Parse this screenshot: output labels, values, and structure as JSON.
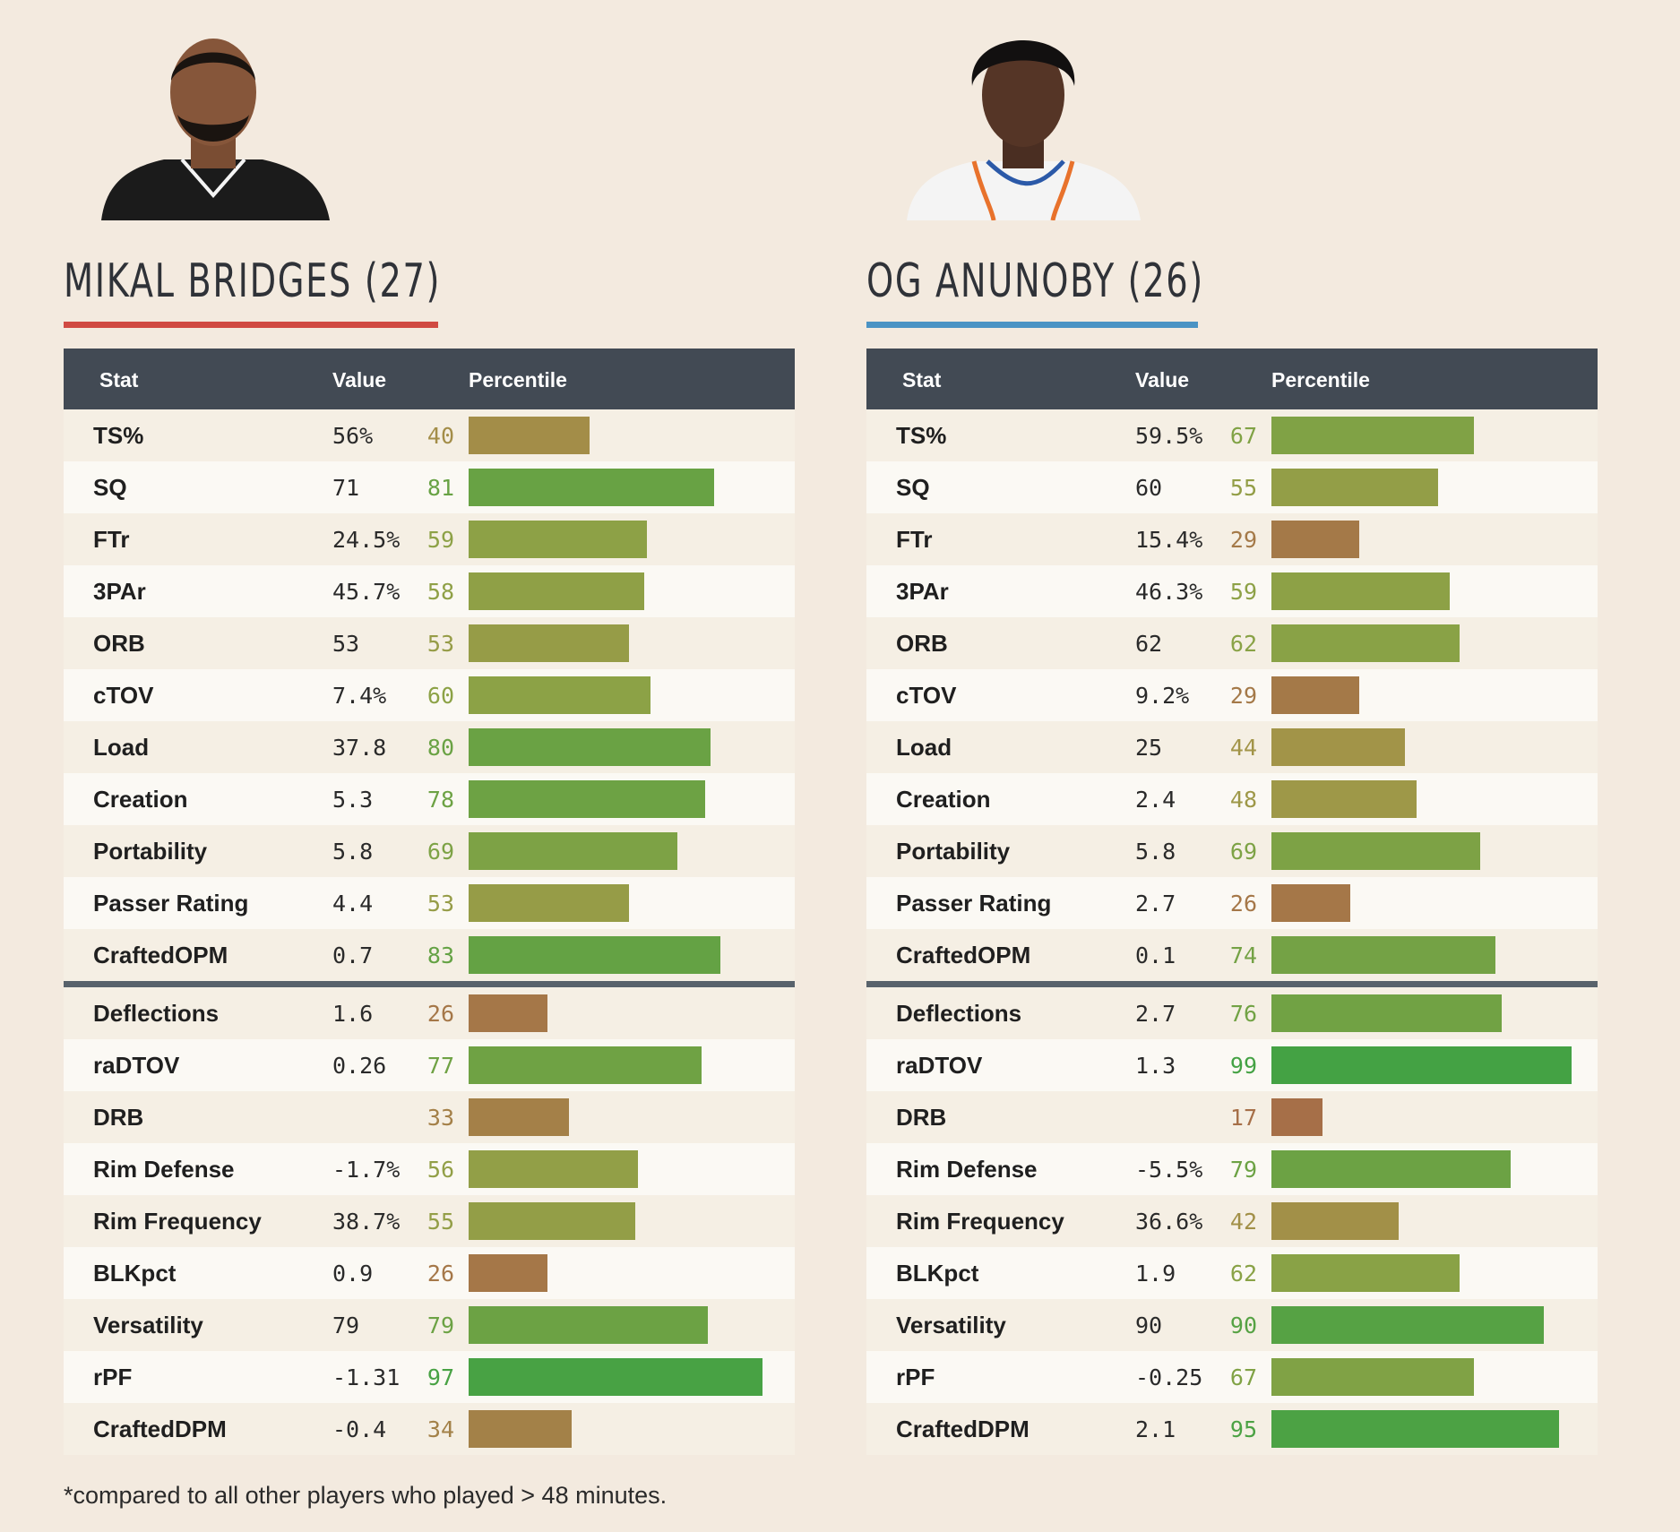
{
  "players": [
    {
      "name": "MIKAL BRIDGES (27)",
      "underline_color": "#d04a42",
      "jersey_color": "#1b1b1b",
      "headers": {
        "stat": "Stat",
        "value": "Value",
        "percentile": "Percentile"
      },
      "offense": [
        {
          "stat": "TS%",
          "value": "56%",
          "pct": 40
        },
        {
          "stat": "SQ",
          "value": "71",
          "pct": 81
        },
        {
          "stat": "FTr",
          "value": "24.5%",
          "pct": 59
        },
        {
          "stat": "3PAr",
          "value": "45.7%",
          "pct": 58
        },
        {
          "stat": "ORB",
          "value": "53",
          "pct": 53
        },
        {
          "stat": "cTOV",
          "value": "7.4%",
          "pct": 60
        },
        {
          "stat": "Load",
          "value": "37.8",
          "pct": 80
        },
        {
          "stat": "Creation",
          "value": "5.3",
          "pct": 78
        },
        {
          "stat": "Portability",
          "value": "5.8",
          "pct": 69
        },
        {
          "stat": "Passer Rating",
          "value": "4.4",
          "pct": 53
        },
        {
          "stat": "CraftedOPM",
          "value": "0.7",
          "pct": 83
        }
      ],
      "defense": [
        {
          "stat": "Deflections",
          "value": "1.6",
          "pct": 26
        },
        {
          "stat": "raDTOV",
          "value": "0.26",
          "pct": 77
        },
        {
          "stat": "DRB",
          "value": "",
          "pct": 33
        },
        {
          "stat": "Rim Defense",
          "value": "-1.7%",
          "pct": 56
        },
        {
          "stat": "Rim Frequency",
          "value": "38.7%",
          "pct": 55
        },
        {
          "stat": "BLKpct",
          "value": "0.9",
          "pct": 26
        },
        {
          "stat": "Versatility",
          "value": "79",
          "pct": 79
        },
        {
          "stat": "rPF",
          "value": "-1.31",
          "pct": 97
        },
        {
          "stat": "CraftedDPM",
          "value": "-0.4",
          "pct": 34
        }
      ]
    },
    {
      "name": "OG ANUNOBY (26)",
      "underline_color": "#4a93c4",
      "jersey_color": "#f4f4f4",
      "headers": {
        "stat": "Stat",
        "value": "Value",
        "percentile": "Percentile"
      },
      "offense": [
        {
          "stat": "TS%",
          "value": "59.5%",
          "pct": 67
        },
        {
          "stat": "SQ",
          "value": "60",
          "pct": 55
        },
        {
          "stat": "FTr",
          "value": "15.4%",
          "pct": 29
        },
        {
          "stat": "3PAr",
          "value": "46.3%",
          "pct": 59
        },
        {
          "stat": "ORB",
          "value": "62",
          "pct": 62
        },
        {
          "stat": "cTOV",
          "value": "9.2%",
          "pct": 29
        },
        {
          "stat": "Load",
          "value": "25",
          "pct": 44
        },
        {
          "stat": "Creation",
          "value": "2.4",
          "pct": 48
        },
        {
          "stat": "Portability",
          "value": "5.8",
          "pct": 69
        },
        {
          "stat": "Passer Rating",
          "value": "2.7",
          "pct": 26
        },
        {
          "stat": "CraftedOPM",
          "value": "0.1",
          "pct": 74
        }
      ],
      "defense": [
        {
          "stat": "Deflections",
          "value": "2.7",
          "pct": 76
        },
        {
          "stat": "raDTOV",
          "value": "1.3",
          "pct": 99
        },
        {
          "stat": "DRB",
          "value": "",
          "pct": 17
        },
        {
          "stat": "Rim Defense",
          "value": "-5.5%",
          "pct": 79
        },
        {
          "stat": "Rim Frequency",
          "value": "36.6%",
          "pct": 42
        },
        {
          "stat": "BLKpct",
          "value": "1.9",
          "pct": 62
        },
        {
          "stat": "Versatility",
          "value": "90",
          "pct": 90
        },
        {
          "stat": "rPF",
          "value": "-0.25",
          "pct": 67
        },
        {
          "stat": "CraftedDPM",
          "value": "2.1",
          "pct": 95
        }
      ]
    }
  ],
  "footnote": "*compared to all other players who played > 48 minutes."
}
